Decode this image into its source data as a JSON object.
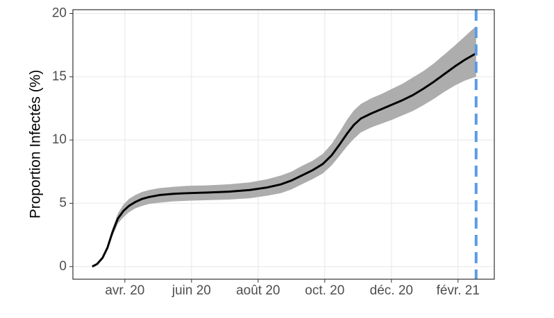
{
  "chart_data": {
    "type": "line",
    "ylabel": "Proportion Infectés (%)",
    "x": [
      2020.1684,
      2020.1806,
      2020.1944,
      2020.2066,
      2020.2188,
      2020.2326,
      2020.2465,
      2020.2604,
      2020.276,
      2020.2934,
      2020.3108,
      2020.3368,
      2020.3715,
      2020.4063,
      2020.4583,
      2020.5104,
      2020.5625,
      2020.6059,
      2020.6406,
      2020.6667,
      2020.6927,
      2020.7188,
      2020.7448,
      2020.7674,
      2020.7882,
      2020.8056,
      2020.8229,
      2020.8403,
      2020.8663,
      2020.8924,
      2020.9184,
      2020.9444,
      2020.9705,
      2020.9965,
      2021.0226,
      2021.0486,
      2021.0747,
      2021.1007,
      2021.1285
    ],
    "series": [
      {
        "color": "#000000",
        "values": [
          0,
          0.2,
          0.7,
          1.5,
          2.7,
          3.8,
          4.4,
          4.8,
          5.1,
          5.35,
          5.5,
          5.65,
          5.75,
          5.8,
          5.85,
          5.92,
          6.05,
          6.25,
          6.5,
          6.8,
          7.2,
          7.6,
          8.1,
          8.8,
          9.7,
          10.5,
          11.2,
          11.7,
          12.1,
          12.45,
          12.8,
          13.15,
          13.55,
          14.05,
          14.6,
          15.2,
          15.8,
          16.35,
          16.85
        ]
      }
    ],
    "band": {
      "color": "#adadad",
      "lower": [
        0,
        0.15,
        0.6,
        1.3,
        2.4,
        3.4,
        3.9,
        4.3,
        4.6,
        4.8,
        4.95,
        5.05,
        5.15,
        5.2,
        5.25,
        5.3,
        5.4,
        5.6,
        5.8,
        6.1,
        6.5,
        6.9,
        7.35,
        8.0,
        8.8,
        9.5,
        10.1,
        10.6,
        11.0,
        11.3,
        11.6,
        11.95,
        12.3,
        12.75,
        13.25,
        13.8,
        14.3,
        14.7,
        15.0
      ],
      "upper": [
        0,
        0.25,
        0.8,
        1.7,
        3.0,
        4.2,
        4.9,
        5.35,
        5.65,
        5.9,
        6.05,
        6.2,
        6.3,
        6.38,
        6.42,
        6.5,
        6.65,
        6.9,
        7.2,
        7.5,
        7.95,
        8.35,
        8.9,
        9.7,
        10.7,
        11.6,
        12.35,
        12.85,
        13.3,
        13.65,
        14.05,
        14.45,
        14.95,
        15.45,
        16.05,
        16.75,
        17.45,
        18.2,
        19.0
      ]
    },
    "vline": {
      "x": 2021.1285,
      "color": "#5b9be6",
      "dashed": true
    },
    "xlim": [
      2020.12,
      2021.174
    ],
    "xticks": [
      {
        "value": 2020.25,
        "label": "avr. 20"
      },
      {
        "value": 2020.4167,
        "label": "juin 20"
      },
      {
        "value": 2020.5833,
        "label": "août 20"
      },
      {
        "value": 2020.75,
        "label": "oct. 20"
      },
      {
        "value": 2020.9167,
        "label": "déc. 20"
      },
      {
        "value": 2021.0833,
        "label": "févr. 21"
      }
    ],
    "ylim": [
      -1,
      20.3
    ],
    "yticks": [
      0,
      5,
      10,
      15,
      20
    ],
    "grid": true
  }
}
